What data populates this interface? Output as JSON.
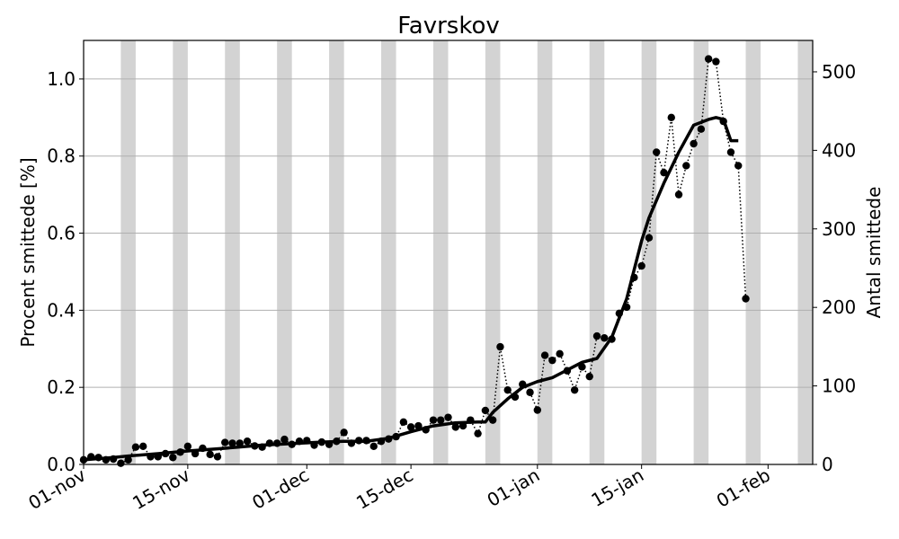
{
  "chart_data": {
    "type": "line",
    "title": "Favrskov",
    "ylabel_left": "Procent smittede [%]",
    "ylabel_right": "Antal smittede",
    "x_start": "2021-11-01",
    "x_end": "2022-02-07",
    "xticks": [
      {
        "date": "2021-11-01",
        "label": "01-nov"
      },
      {
        "date": "2021-11-15",
        "label": "15-nov"
      },
      {
        "date": "2021-12-01",
        "label": "01-dec"
      },
      {
        "date": "2021-12-15",
        "label": "15-dec"
      },
      {
        "date": "2022-01-01",
        "label": "01-jan"
      },
      {
        "date": "2022-01-15",
        "label": "15-jan"
      },
      {
        "date": "2022-02-01",
        "label": "01-feb"
      }
    ],
    "ylim_left": [
      0,
      1.1
    ],
    "yticks_left": [
      "0.0",
      "0.2",
      "0.4",
      "0.6",
      "0.8",
      "1.0"
    ],
    "ylim_right": [
      0,
      540
    ],
    "yticks_right": [
      "0",
      "100",
      "200",
      "300",
      "400",
      "500"
    ],
    "grid": "horizontal",
    "weekend_shading": [
      "2021-11-06",
      "2021-11-13",
      "2021-11-20",
      "2021-11-27",
      "2021-12-04",
      "2021-12-11",
      "2021-12-18",
      "2021-12-25",
      "2022-01-01",
      "2022-01-08",
      "2022-01-15",
      "2022-01-22",
      "2022-01-29",
      "2022-02-05"
    ],
    "series": [
      {
        "style": "dotted-with-markers",
        "x": [
          "2021-11-01",
          "2021-11-02",
          "2021-11-03",
          "2021-11-04",
          "2021-11-05",
          "2021-11-06",
          "2021-11-07",
          "2021-11-08",
          "2021-11-09",
          "2021-11-10",
          "2021-11-11",
          "2021-11-12",
          "2021-11-13",
          "2021-11-14",
          "2021-11-15",
          "2021-11-16",
          "2021-11-17",
          "2021-11-18",
          "2021-11-19",
          "2021-11-20",
          "2021-11-21",
          "2021-11-22",
          "2021-11-23",
          "2021-11-24",
          "2021-11-25",
          "2021-11-26",
          "2021-11-27",
          "2021-11-28",
          "2021-11-29",
          "2021-11-30",
          "2021-12-01",
          "2021-12-02",
          "2021-12-03",
          "2021-12-04",
          "2021-12-05",
          "2021-12-06",
          "2021-12-07",
          "2021-12-08",
          "2021-12-09",
          "2021-12-10",
          "2021-12-11",
          "2021-12-12",
          "2021-12-13",
          "2021-12-14",
          "2021-12-15",
          "2021-12-16",
          "2021-12-17",
          "2021-12-18",
          "2021-12-19",
          "2021-12-20",
          "2021-12-21",
          "2021-12-22",
          "2021-12-23",
          "2021-12-24",
          "2021-12-25",
          "2021-12-26",
          "2021-12-27",
          "2021-12-28",
          "2021-12-29",
          "2021-12-30",
          "2021-12-31",
          "2022-01-01",
          "2022-01-02",
          "2022-01-03",
          "2022-01-04",
          "2022-01-05",
          "2022-01-06",
          "2022-01-07",
          "2022-01-08",
          "2022-01-09",
          "2022-01-10",
          "2022-01-11",
          "2022-01-12",
          "2022-01-13",
          "2022-01-14",
          "2022-01-15",
          "2022-01-16",
          "2022-01-17",
          "2022-01-18",
          "2022-01-19",
          "2022-01-20",
          "2022-01-21",
          "2022-01-22",
          "2022-01-23",
          "2022-01-24",
          "2022-01-25",
          "2022-01-26",
          "2022-01-27",
          "2022-01-28",
          "2022-01-29"
        ],
        "values": [
          0.012,
          0.02,
          0.018,
          0.012,
          0.014,
          0.003,
          0.012,
          0.045,
          0.047,
          0.02,
          0.02,
          0.028,
          0.018,
          0.032,
          0.047,
          0.028,
          0.042,
          0.026,
          0.02,
          0.057,
          0.055,
          0.055,
          0.06,
          0.048,
          0.045,
          0.055,
          0.055,
          0.065,
          0.052,
          0.06,
          0.062,
          0.05,
          0.058,
          0.052,
          0.06,
          0.083,
          0.055,
          0.062,
          0.062,
          0.047,
          0.06,
          0.066,
          0.072,
          0.11,
          0.097,
          0.1,
          0.09,
          0.115,
          0.115,
          0.122,
          0.097,
          0.1,
          0.115,
          0.08,
          0.14,
          0.115,
          0.305,
          0.193,
          0.175,
          0.208,
          0.187,
          0.141,
          0.283,
          0.27,
          0.287,
          0.243,
          0.193,
          0.253,
          0.228,
          0.333,
          0.328,
          0.325,
          0.392,
          0.408,
          0.485,
          0.515,
          0.588,
          0.81,
          0.757,
          0.9,
          0.7,
          0.775,
          0.832,
          0.87,
          1.052,
          1.045,
          0.89,
          0.81,
          0.775,
          0.43
        ]
      },
      {
        "style": "solid-thick",
        "x": [
          "2021-11-01",
          "2021-11-03",
          "2021-11-05",
          "2021-11-07",
          "2021-11-11",
          "2021-11-15",
          "2021-11-20",
          "2021-11-25",
          "2021-11-30",
          "2021-12-03",
          "2021-12-06",
          "2021-12-09",
          "2021-12-12",
          "2021-12-15",
          "2021-12-18",
          "2021-12-21",
          "2021-12-24",
          "2021-12-25",
          "2021-12-26",
          "2021-12-28",
          "2021-12-30",
          "2022-01-01",
          "2022-01-03",
          "2022-01-05",
          "2022-01-07",
          "2022-01-09",
          "2022-01-11",
          "2022-01-13",
          "2022-01-15",
          "2022-01-16",
          "2022-01-18",
          "2022-01-20",
          "2022-01-22",
          "2022-01-24",
          "2022-01-25",
          "2022-01-26",
          "2022-01-27",
          "2022-01-28"
        ],
        "values": [
          0.012,
          0.015,
          0.018,
          0.022,
          0.028,
          0.035,
          0.042,
          0.05,
          0.055,
          0.058,
          0.06,
          0.06,
          0.068,
          0.085,
          0.1,
          0.108,
          0.11,
          0.11,
          0.135,
          0.17,
          0.2,
          0.215,
          0.225,
          0.245,
          0.265,
          0.275,
          0.33,
          0.43,
          0.58,
          0.64,
          0.73,
          0.81,
          0.88,
          0.895,
          0.9,
          0.895,
          0.84,
          0.84
        ]
      }
    ]
  }
}
